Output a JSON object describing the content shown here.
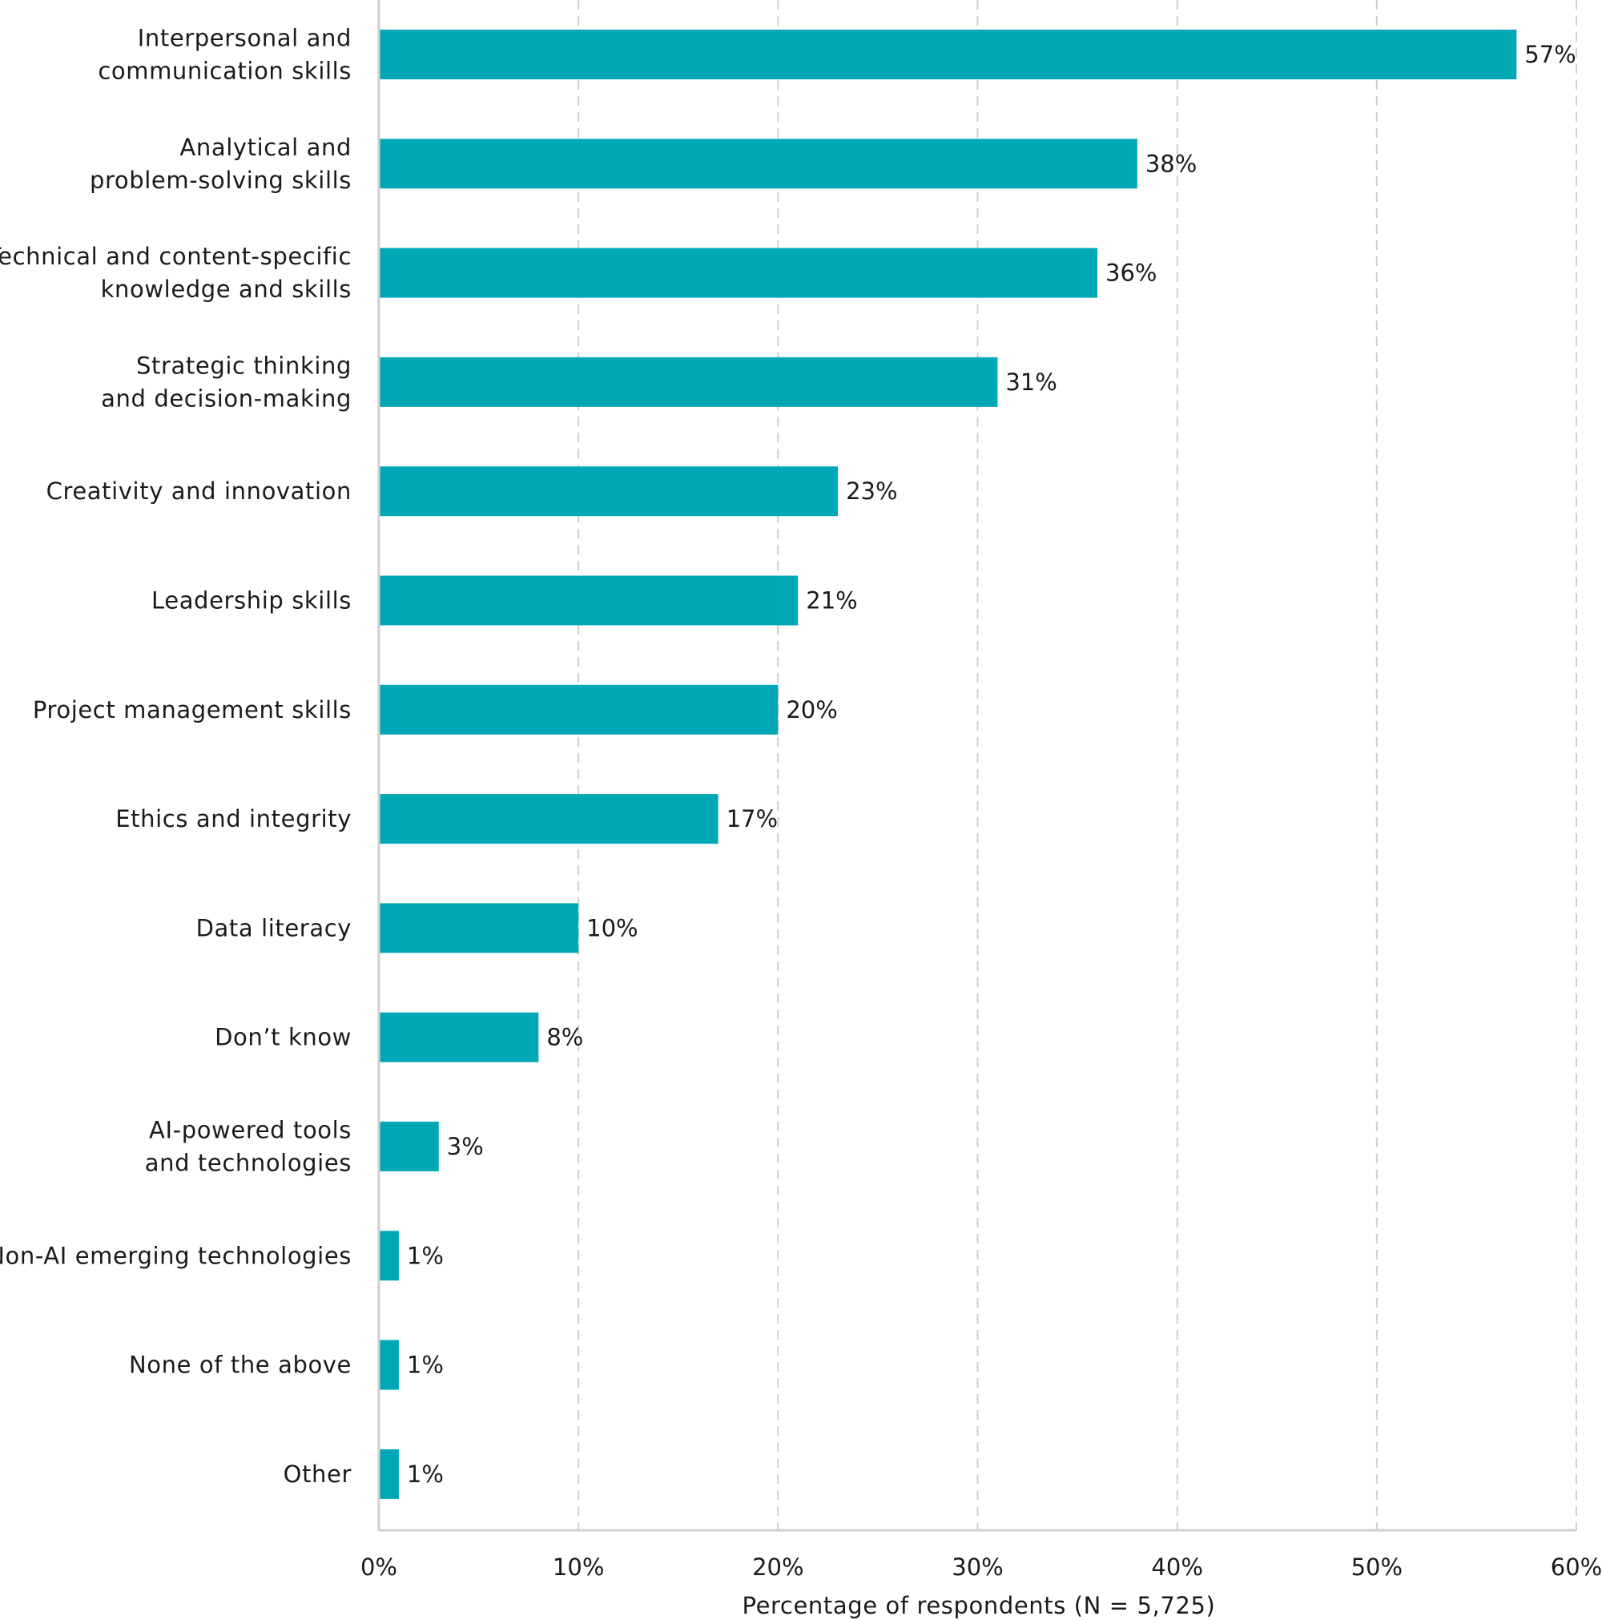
{
  "chart_data": {
    "type": "bar",
    "orientation": "horizontal",
    "categories": [
      [
        "Interpersonal and",
        "communication skills"
      ],
      [
        "Analytical and",
        "problem-solving skills"
      ],
      [
        "Technical and content-specific",
        "knowledge and skills"
      ],
      [
        "Strategic thinking",
        "and decision-making"
      ],
      [
        "Creativity and innovation"
      ],
      [
        "Leadership skills"
      ],
      [
        "Project management skills"
      ],
      [
        "Ethics and integrity"
      ],
      [
        "Data literacy"
      ],
      [
        "Don’t know"
      ],
      [
        "AI-powered tools",
        "and technologies"
      ],
      [
        "Non-AI emerging technologies"
      ],
      [
        "None of the above"
      ],
      [
        "Other"
      ]
    ],
    "values": [
      57,
      38,
      36,
      31,
      23,
      21,
      20,
      17,
      10,
      8,
      3,
      1,
      1,
      1
    ],
    "value_labels": [
      "57%",
      "38%",
      "36%",
      "31%",
      "23%",
      "21%",
      "20%",
      "17%",
      "10%",
      "8%",
      "3%",
      "1%",
      "1%",
      "1%"
    ],
    "xlabel": "Percentage of respondents (N = 5,725)",
    "xlim": [
      0,
      60
    ],
    "xticks": [
      0,
      10,
      20,
      30,
      40,
      50,
      60
    ],
    "xtick_labels": [
      "0%",
      "10%",
      "20%",
      "30%",
      "40%",
      "50%",
      "60%"
    ],
    "grid": true,
    "bar_color": "#00a8b5",
    "grid_color": "#cfcfcf",
    "text_color": "#1a1a1a"
  }
}
